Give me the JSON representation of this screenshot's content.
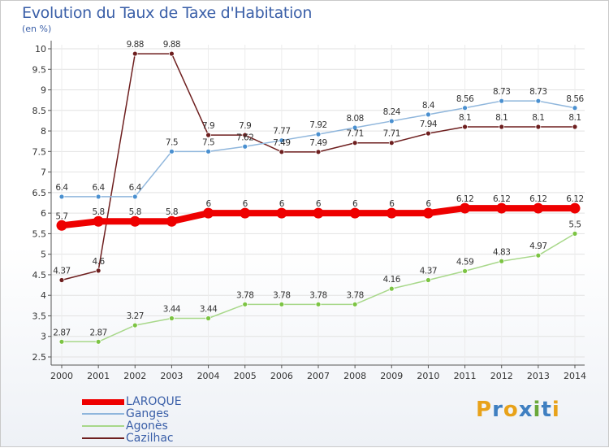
{
  "title": "Evolution du Taux de Taxe d'Habitation",
  "subtitle": "(en %)",
  "logo": {
    "text": "Proxiti",
    "letters": [
      "P",
      "r",
      "o",
      "x",
      "i",
      "t",
      "i"
    ],
    "colors": [
      "#e8a21a",
      "#3f7fc1",
      "#e8a21a",
      "#3f7fc1",
      "#6aa83a",
      "#3f7fc1",
      "#e8a21a"
    ]
  },
  "chart_data": {
    "type": "line",
    "x": [
      "2000",
      "2001",
      "2002",
      "2003",
      "2004",
      "2005",
      "2006",
      "2007",
      "2008",
      "2009",
      "2010",
      "2011",
      "2012",
      "2013",
      "2014"
    ],
    "ylim": [
      2.5,
      10
    ],
    "yticks": [
      "2.5",
      "3",
      "3.5",
      "4",
      "4.5",
      "5",
      "5.5",
      "6",
      "6.5",
      "7",
      "7.5",
      "8",
      "8.5",
      "9",
      "9.5",
      "10"
    ],
    "grid": true,
    "legend_position": "bottom-left",
    "series": [
      {
        "name": "Cazilhac",
        "color": "#6e1f1f",
        "marker": "#6e1f1f",
        "values": [
          4.37,
          4.6,
          9.88,
          9.88,
          7.9,
          7.9,
          7.49,
          7.49,
          7.71,
          7.71,
          7.94,
          8.1,
          8.1,
          8.1,
          8.1
        ],
        "labels": [
          "4.37",
          "4.6",
          "9.88",
          "9.88",
          "7.9",
          "7.9",
          "7.49",
          "7.49",
          "7.71",
          "7.71",
          "7.94",
          "8.1",
          "8.1",
          "8.1",
          "8.1"
        ]
      },
      {
        "name": "Agonès",
        "color": "#a8d88a",
        "marker": "#7cc443",
        "values": [
          2.87,
          2.87,
          3.27,
          3.44,
          3.44,
          3.78,
          3.78,
          3.78,
          3.78,
          4.16,
          4.37,
          4.59,
          4.83,
          4.97,
          5.5
        ],
        "labels": [
          "2.87",
          "2.87",
          "3.27",
          "3.44",
          "3.44",
          "3.78",
          "3.78",
          "3.78",
          "3.78",
          "4.16",
          "4.37",
          "4.59",
          "4.83",
          "4.97",
          "5.5"
        ]
      },
      {
        "name": "Ganges",
        "color": "#8fb6dc",
        "marker": "#4a90d0",
        "values": [
          6.4,
          6.4,
          6.4,
          7.5,
          7.5,
          7.62,
          7.77,
          7.92,
          8.08,
          8.24,
          8.4,
          8.56,
          8.73,
          8.73,
          8.56
        ],
        "labels": [
          "6.4",
          "6.4",
          "6.4",
          "7.5",
          "7.5",
          "7.62",
          "7.77",
          "7.92",
          "8.08",
          "8.24",
          "8.4",
          "8.56",
          "8.73",
          "8.73",
          "8.56"
        ]
      },
      {
        "name": "LAROQUE",
        "color": "#ee0000",
        "marker": "#ee0000",
        "values": [
          5.7,
          5.8,
          5.8,
          5.8,
          6,
          6,
          6,
          6,
          6,
          6,
          6,
          6.12,
          6.12,
          6.12,
          6.12
        ],
        "labels": [
          "5.7",
          "5.8",
          "5.8",
          "5.8",
          "6",
          "6",
          "6",
          "6",
          "6",
          "6",
          "6",
          "6.12",
          "6.12",
          "6.12",
          "6.12"
        ]
      }
    ],
    "legend": [
      "LAROQUE",
      "Ganges",
      "Agonès",
      "Cazilhac"
    ]
  }
}
